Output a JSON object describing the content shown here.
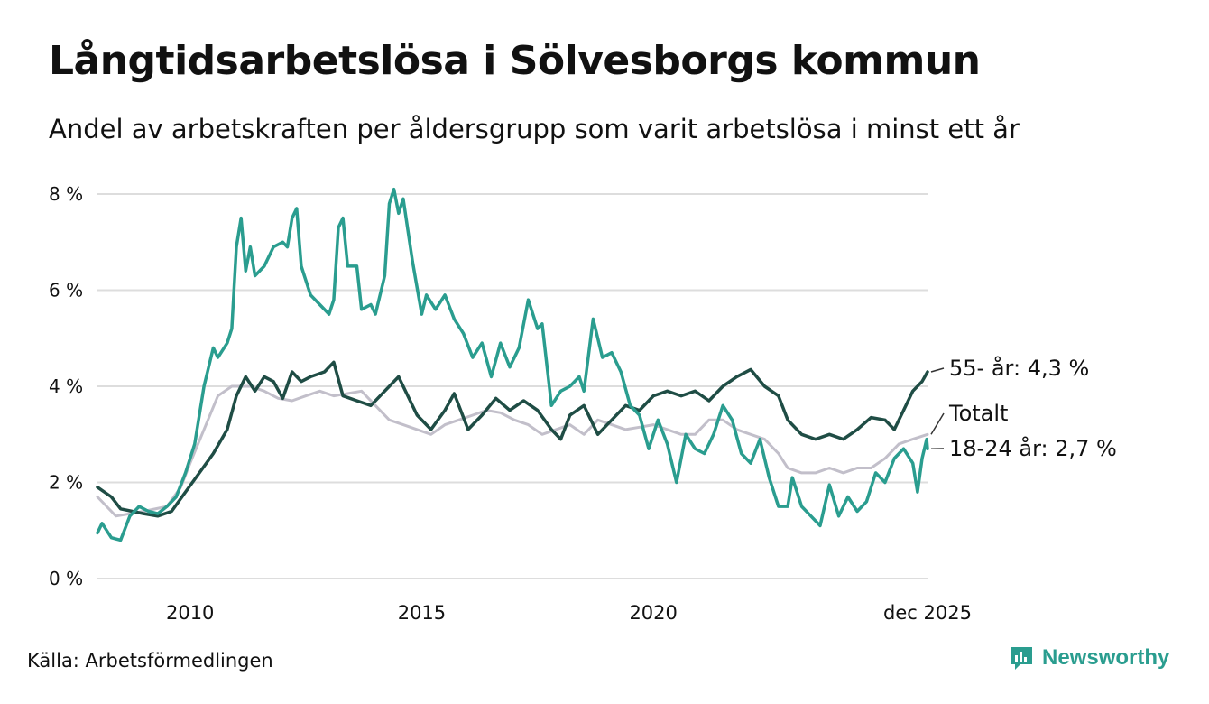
{
  "header": {
    "title": "Långtidsarbetslösa i Sölvesborgs kommun",
    "subtitle": "Andel av arbetskraften per åldersgrupp som varit arbetslösa i minst ett år"
  },
  "footer": {
    "source": "Källa: Arbetsförmedlingen",
    "brand": "Newsworthy"
  },
  "colors": {
    "age_55_plus": "#1f4d45",
    "total": "#c2bfca",
    "age_18_24": "#2a9d8f",
    "grid": "#dddddd",
    "brand": "#2a9d8f"
  },
  "chart_data": {
    "type": "line",
    "title": "Långtidsarbetslösa i Sölvesborgs kommun",
    "subtitle": "Andel av arbetskraften per åldersgrupp som varit arbetslösa i minst ett år",
    "xlabel": "",
    "ylabel": "",
    "x_range": [
      2008.0,
      2025.917
    ],
    "ylim": [
      0,
      8
    ],
    "y_ticks": [
      0,
      2,
      4,
      6,
      8
    ],
    "y_tick_labels": [
      "0 %",
      "2 %",
      "4 %",
      "6 %",
      "8 %"
    ],
    "x_ticks": [
      2010,
      2015,
      2020,
      2025.917
    ],
    "x_tick_labels": [
      "2010",
      "2015",
      "2020",
      "dec 2025"
    ],
    "grid": true,
    "legend": "end-labels-right",
    "series": [
      {
        "name": "Totalt",
        "end_label": "Totalt",
        "color": "#c2bfca",
        "points": [
          [
            2008.0,
            1.7
          ],
          [
            2008.4,
            1.3
          ],
          [
            2009.0,
            1.4
          ],
          [
            2009.5,
            1.5
          ],
          [
            2009.8,
            1.9
          ],
          [
            2010.0,
            2.4
          ],
          [
            2010.3,
            3.1
          ],
          [
            2010.6,
            3.8
          ],
          [
            2010.9,
            4.0
          ],
          [
            2011.3,
            4.0
          ],
          [
            2011.6,
            3.9
          ],
          [
            2011.9,
            3.75
          ],
          [
            2012.2,
            3.7
          ],
          [
            2012.5,
            3.8
          ],
          [
            2012.8,
            3.9
          ],
          [
            2013.1,
            3.8
          ],
          [
            2013.4,
            3.85
          ],
          [
            2013.7,
            3.9
          ],
          [
            2014.0,
            3.6
          ],
          [
            2014.3,
            3.3
          ],
          [
            2014.6,
            3.2
          ],
          [
            2014.9,
            3.1
          ],
          [
            2015.2,
            3.0
          ],
          [
            2015.5,
            3.2
          ],
          [
            2015.8,
            3.3
          ],
          [
            2016.1,
            3.4
          ],
          [
            2016.4,
            3.5
          ],
          [
            2016.7,
            3.45
          ],
          [
            2017.0,
            3.3
          ],
          [
            2017.3,
            3.2
          ],
          [
            2017.6,
            3.0
          ],
          [
            2017.9,
            3.1
          ],
          [
            2018.2,
            3.2
          ],
          [
            2018.5,
            3.0
          ],
          [
            2018.8,
            3.3
          ],
          [
            2019.1,
            3.2
          ],
          [
            2019.4,
            3.1
          ],
          [
            2019.7,
            3.15
          ],
          [
            2020.0,
            3.2
          ],
          [
            2020.3,
            3.1
          ],
          [
            2020.6,
            3.0
          ],
          [
            2020.9,
            3.0
          ],
          [
            2021.2,
            3.3
          ],
          [
            2021.5,
            3.3
          ],
          [
            2021.8,
            3.1
          ],
          [
            2022.1,
            3.0
          ],
          [
            2022.4,
            2.9
          ],
          [
            2022.7,
            2.6
          ],
          [
            2022.9,
            2.3
          ],
          [
            2023.2,
            2.2
          ],
          [
            2023.5,
            2.2
          ],
          [
            2023.8,
            2.3
          ],
          [
            2024.1,
            2.2
          ],
          [
            2024.4,
            2.3
          ],
          [
            2024.7,
            2.3
          ],
          [
            2025.0,
            2.5
          ],
          [
            2025.3,
            2.8
          ],
          [
            2025.6,
            2.9
          ],
          [
            2025.917,
            3.0
          ]
        ]
      },
      {
        "name": "55- år",
        "end_label": "55- år: 4,3 %",
        "color": "#1f4d45",
        "points": [
          [
            2008.0,
            1.9
          ],
          [
            2008.3,
            1.7
          ],
          [
            2008.5,
            1.45
          ],
          [
            2009.0,
            1.35
          ],
          [
            2009.3,
            1.3
          ],
          [
            2009.6,
            1.4
          ],
          [
            2009.9,
            1.8
          ],
          [
            2010.2,
            2.2
          ],
          [
            2010.5,
            2.6
          ],
          [
            2010.8,
            3.1
          ],
          [
            2011.0,
            3.8
          ],
          [
            2011.2,
            4.2
          ],
          [
            2011.4,
            3.9
          ],
          [
            2011.6,
            4.2
          ],
          [
            2011.8,
            4.1
          ],
          [
            2012.0,
            3.75
          ],
          [
            2012.2,
            4.3
          ],
          [
            2012.4,
            4.1
          ],
          [
            2012.6,
            4.2
          ],
          [
            2012.9,
            4.3
          ],
          [
            2013.1,
            4.5
          ],
          [
            2013.3,
            3.8
          ],
          [
            2013.6,
            3.7
          ],
          [
            2013.9,
            3.6
          ],
          [
            2014.2,
            3.9
          ],
          [
            2014.5,
            4.2
          ],
          [
            2014.7,
            3.8
          ],
          [
            2014.9,
            3.4
          ],
          [
            2015.2,
            3.1
          ],
          [
            2015.5,
            3.5
          ],
          [
            2015.7,
            3.85
          ],
          [
            2016.0,
            3.1
          ],
          [
            2016.3,
            3.4
          ],
          [
            2016.6,
            3.75
          ],
          [
            2016.9,
            3.5
          ],
          [
            2017.2,
            3.7
          ],
          [
            2017.5,
            3.5
          ],
          [
            2017.8,
            3.1
          ],
          [
            2018.0,
            2.9
          ],
          [
            2018.2,
            3.4
          ],
          [
            2018.5,
            3.6
          ],
          [
            2018.8,
            3.0
          ],
          [
            2019.1,
            3.3
          ],
          [
            2019.4,
            3.6
          ],
          [
            2019.7,
            3.5
          ],
          [
            2020.0,
            3.8
          ],
          [
            2020.3,
            3.9
          ],
          [
            2020.6,
            3.8
          ],
          [
            2020.9,
            3.9
          ],
          [
            2021.2,
            3.7
          ],
          [
            2021.5,
            4.0
          ],
          [
            2021.8,
            4.2
          ],
          [
            2022.1,
            4.35
          ],
          [
            2022.4,
            4.0
          ],
          [
            2022.7,
            3.8
          ],
          [
            2022.9,
            3.3
          ],
          [
            2023.2,
            3.0
          ],
          [
            2023.5,
            2.9
          ],
          [
            2023.8,
            3.0
          ],
          [
            2024.1,
            2.9
          ],
          [
            2024.4,
            3.1
          ],
          [
            2024.7,
            3.35
          ],
          [
            2025.0,
            3.3
          ],
          [
            2025.2,
            3.1
          ],
          [
            2025.4,
            3.5
          ],
          [
            2025.6,
            3.9
          ],
          [
            2025.8,
            4.1
          ],
          [
            2025.917,
            4.3
          ]
        ]
      },
      {
        "name": "18-24 år",
        "end_label": "18-24 år: 2,7 %",
        "color": "#2a9d8f",
        "points": [
          [
            2008.0,
            0.95
          ],
          [
            2008.1,
            1.15
          ],
          [
            2008.3,
            0.85
          ],
          [
            2008.5,
            0.8
          ],
          [
            2008.7,
            1.3
          ],
          [
            2008.9,
            1.5
          ],
          [
            2009.1,
            1.4
          ],
          [
            2009.3,
            1.35
          ],
          [
            2009.5,
            1.5
          ],
          [
            2009.7,
            1.7
          ],
          [
            2009.9,
            2.2
          ],
          [
            2010.1,
            2.8
          ],
          [
            2010.3,
            4.0
          ],
          [
            2010.5,
            4.8
          ],
          [
            2010.6,
            4.6
          ],
          [
            2010.8,
            4.9
          ],
          [
            2010.9,
            5.2
          ],
          [
            2011.0,
            6.9
          ],
          [
            2011.1,
            7.5
          ],
          [
            2011.2,
            6.4
          ],
          [
            2011.3,
            6.9
          ],
          [
            2011.4,
            6.3
          ],
          [
            2011.6,
            6.5
          ],
          [
            2011.8,
            6.9
          ],
          [
            2012.0,
            7.0
          ],
          [
            2012.1,
            6.9
          ],
          [
            2012.2,
            7.5
          ],
          [
            2012.3,
            7.7
          ],
          [
            2012.4,
            6.5
          ],
          [
            2012.6,
            5.9
          ],
          [
            2012.8,
            5.7
          ],
          [
            2013.0,
            5.5
          ],
          [
            2013.1,
            5.8
          ],
          [
            2013.2,
            7.3
          ],
          [
            2013.3,
            7.5
          ],
          [
            2013.4,
            6.5
          ],
          [
            2013.6,
            6.5
          ],
          [
            2013.7,
            5.6
          ],
          [
            2013.9,
            5.7
          ],
          [
            2014.0,
            5.5
          ],
          [
            2014.2,
            6.3
          ],
          [
            2014.3,
            7.8
          ],
          [
            2014.4,
            8.1
          ],
          [
            2014.5,
            7.6
          ],
          [
            2014.6,
            7.9
          ],
          [
            2014.8,
            6.6
          ],
          [
            2015.0,
            5.5
          ],
          [
            2015.1,
            5.9
          ],
          [
            2015.3,
            5.6
          ],
          [
            2015.5,
            5.9
          ],
          [
            2015.7,
            5.4
          ],
          [
            2015.9,
            5.1
          ],
          [
            2016.1,
            4.6
          ],
          [
            2016.3,
            4.9
          ],
          [
            2016.5,
            4.2
          ],
          [
            2016.7,
            4.9
          ],
          [
            2016.9,
            4.4
          ],
          [
            2017.1,
            4.8
          ],
          [
            2017.3,
            5.8
          ],
          [
            2017.5,
            5.2
          ],
          [
            2017.6,
            5.3
          ],
          [
            2017.8,
            3.6
          ],
          [
            2018.0,
            3.9
          ],
          [
            2018.2,
            4.0
          ],
          [
            2018.4,
            4.2
          ],
          [
            2018.5,
            3.9
          ],
          [
            2018.7,
            5.4
          ],
          [
            2018.9,
            4.6
          ],
          [
            2019.1,
            4.7
          ],
          [
            2019.3,
            4.3
          ],
          [
            2019.5,
            3.6
          ],
          [
            2019.7,
            3.4
          ],
          [
            2019.9,
            2.7
          ],
          [
            2020.1,
            3.3
          ],
          [
            2020.3,
            2.8
          ],
          [
            2020.5,
            2.0
          ],
          [
            2020.7,
            3.0
          ],
          [
            2020.9,
            2.7
          ],
          [
            2021.1,
            2.6
          ],
          [
            2021.3,
            3.0
          ],
          [
            2021.5,
            3.6
          ],
          [
            2021.7,
            3.3
          ],
          [
            2021.9,
            2.6
          ],
          [
            2022.1,
            2.4
          ],
          [
            2022.3,
            2.9
          ],
          [
            2022.5,
            2.1
          ],
          [
            2022.7,
            1.5
          ],
          [
            2022.9,
            1.5
          ],
          [
            2023.0,
            2.1
          ],
          [
            2023.2,
            1.5
          ],
          [
            2023.4,
            1.3
          ],
          [
            2023.6,
            1.1
          ],
          [
            2023.8,
            1.95
          ],
          [
            2024.0,
            1.3
          ],
          [
            2024.2,
            1.7
          ],
          [
            2024.4,
            1.4
          ],
          [
            2024.6,
            1.6
          ],
          [
            2024.8,
            2.2
          ],
          [
            2025.0,
            2.0
          ],
          [
            2025.2,
            2.5
          ],
          [
            2025.4,
            2.7
          ],
          [
            2025.6,
            2.4
          ],
          [
            2025.7,
            1.8
          ],
          [
            2025.8,
            2.5
          ],
          [
            2025.9,
            2.9
          ],
          [
            2025.917,
            2.7
          ]
        ]
      }
    ],
    "end_label_values": [
      4.3,
      3.0,
      2.7
    ]
  }
}
